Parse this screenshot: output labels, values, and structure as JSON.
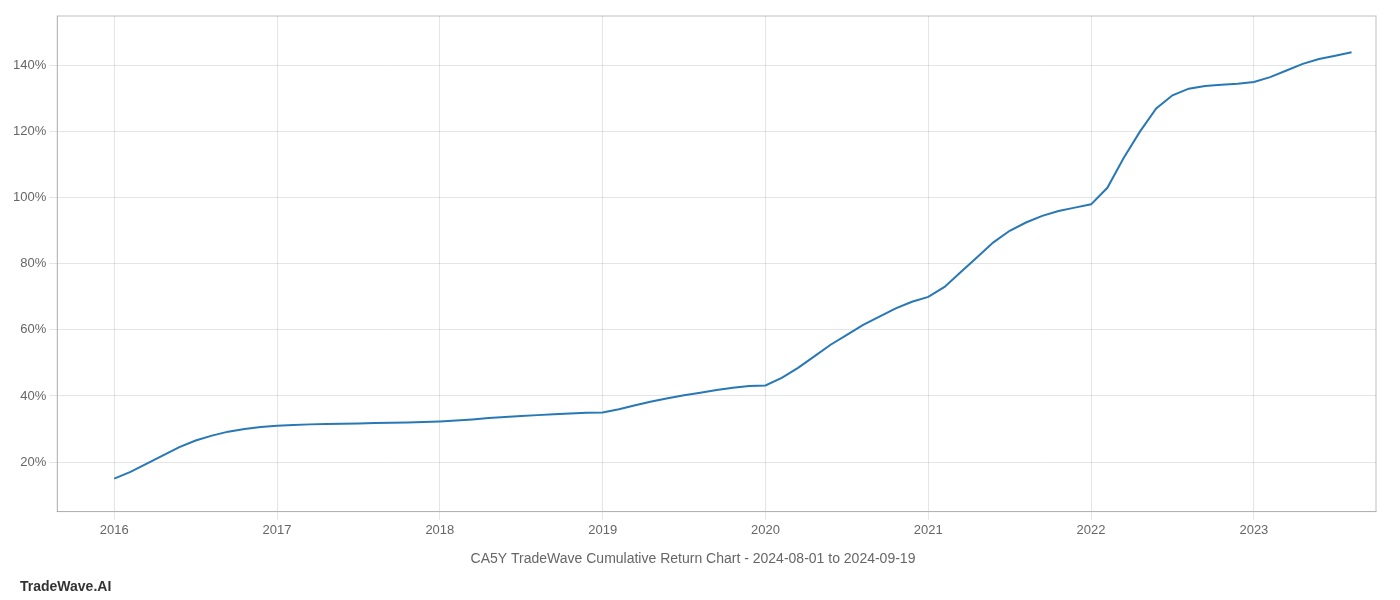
{
  "chart_data": {
    "type": "line",
    "title": "CA5Y TradeWave Cumulative Return Chart - 2024-08-01 to 2024-09-19",
    "annotations": [
      "TradeWave.AI"
    ],
    "color": "#2878b5",
    "grid": true,
    "x": [
      2016.0,
      2016.1,
      2016.2,
      2016.3,
      2016.4,
      2016.5,
      2016.6,
      2016.7,
      2016.8,
      2016.9,
      2017.0,
      2017.1,
      2017.2,
      2017.3,
      2017.4,
      2017.5,
      2017.6,
      2017.7,
      2017.8,
      2017.9,
      2018.0,
      2018.1,
      2018.2,
      2018.3,
      2018.4,
      2018.5,
      2018.6,
      2018.7,
      2018.8,
      2018.9,
      2019.0,
      2019.1,
      2019.2,
      2019.3,
      2019.4,
      2019.5,
      2019.6,
      2019.7,
      2019.8,
      2019.9,
      2020.0,
      2020.1,
      2020.2,
      2020.3,
      2020.4,
      2020.5,
      2020.6,
      2020.7,
      2020.8,
      2020.9,
      2021.0,
      2021.1,
      2021.2,
      2021.3,
      2021.4,
      2021.5,
      2021.6,
      2021.7,
      2021.8,
      2021.9,
      2022.0,
      2022.1,
      2022.2,
      2022.3,
      2022.4,
      2022.5,
      2022.6,
      2022.7,
      2022.8,
      2022.9,
      2023.0,
      2023.1,
      2023.2,
      2023.3,
      2023.4,
      2023.5,
      2023.6
    ],
    "values": [
      15.0,
      17.0,
      19.5,
      22.0,
      24.5,
      26.5,
      28.0,
      29.2,
      30.0,
      30.6,
      31.0,
      31.2,
      31.4,
      31.5,
      31.6,
      31.7,
      31.8,
      31.9,
      32.0,
      32.1,
      32.3,
      32.6,
      32.9,
      33.3,
      33.6,
      33.9,
      34.2,
      34.5,
      34.7,
      34.9,
      35.0,
      36.0,
      37.2,
      38.3,
      39.3,
      40.2,
      41.0,
      41.8,
      42.5,
      43.0,
      43.2,
      45.5,
      48.5,
      52.0,
      55.5,
      58.5,
      61.5,
      64.0,
      66.5,
      68.5,
      70.0,
      73.0,
      77.5,
      82.0,
      86.5,
      90.0,
      92.5,
      94.5,
      96.0,
      97.0,
      98.0,
      103.0,
      112.0,
      120.0,
      127.0,
      131.0,
      133.0,
      133.8,
      134.2,
      134.5,
      135.0,
      136.5,
      138.5,
      140.5,
      142.0,
      143.0,
      144.0
    ],
    "xlim": [
      2015.65,
      2023.75
    ],
    "xticks": [
      2016,
      2017,
      2018,
      2019,
      2020,
      2021,
      2022,
      2023
    ],
    "ylim": [
      5,
      155
    ],
    "yticks": [
      {
        "value": 20,
        "label": "20%"
      },
      {
        "value": 40,
        "label": "40%"
      },
      {
        "value": 60,
        "label": "60%"
      },
      {
        "value": 80,
        "label": "80%"
      },
      {
        "value": 100,
        "label": "100%"
      },
      {
        "value": 120,
        "label": "120%"
      },
      {
        "value": 140,
        "label": "140%"
      }
    ]
  }
}
